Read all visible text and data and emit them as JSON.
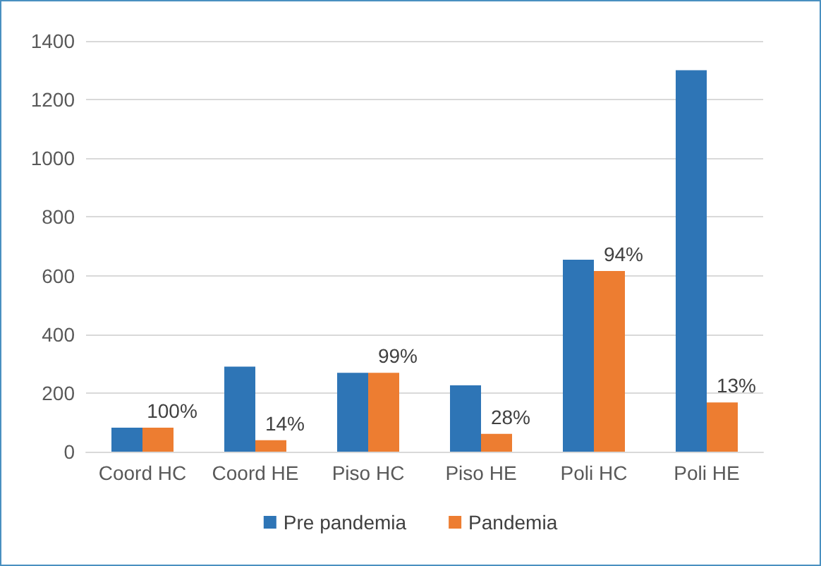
{
  "chart_data": {
    "type": "bar",
    "categories": [
      "Coord HC",
      "Coord HE",
      "Piso HC",
      "Piso HE",
      "Poli HC",
      "Poli HE"
    ],
    "series": [
      {
        "name": "Pre pandemia",
        "color": "#2e75b6",
        "values": [
          82,
          290,
          269,
          226,
          654,
          1300
        ]
      },
      {
        "name": "Pandemia",
        "color": "#ed7d31",
        "values": [
          82,
          39,
          269,
          61,
          616,
          168
        ]
      }
    ],
    "annotations": [
      {
        "text": "100%",
        "x": "Coord HC",
        "y": 82
      },
      {
        "text": "14%",
        "x": "Coord HE",
        "y": 39
      },
      {
        "text": "99%",
        "x": "Piso HC",
        "y": 269
      },
      {
        "text": "28%",
        "x": "Piso HE",
        "y": 61
      },
      {
        "text": "94%",
        "x": "Poli HC",
        "y": 616
      },
      {
        "text": "13%",
        "x": "Poli HE",
        "y": 168
      }
    ],
    "ylim": [
      0,
      1400
    ],
    "yticks": [
      0,
      200,
      400,
      600,
      800,
      1000,
      1200,
      1400
    ],
    "grid": "y",
    "legend": "bottom"
  }
}
